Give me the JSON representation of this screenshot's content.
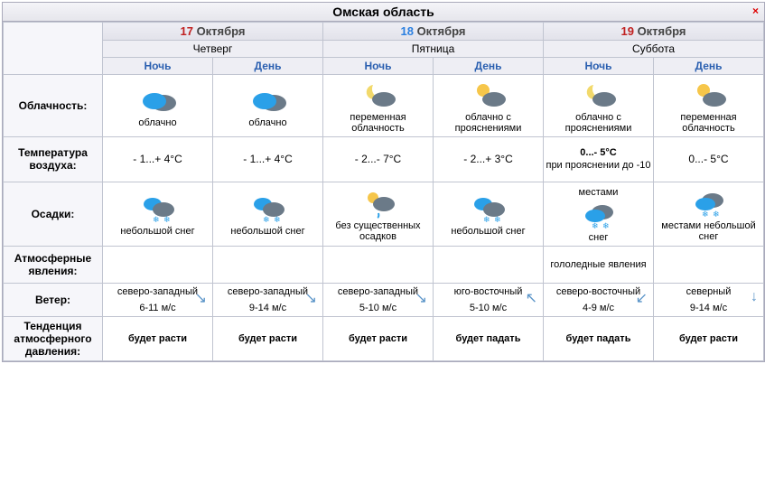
{
  "title": "Омская область",
  "closeGlyph": "×",
  "rowLabels": {
    "cloud": "Облачность:",
    "temp": "Температура воздуха:",
    "precip": "Осадки:",
    "atm": "Атмосферные явления:",
    "wind": "Ветер:",
    "press": "Тенденция атмосферного давления:"
  },
  "todLabels": {
    "night": "Ночь",
    "day": "День"
  },
  "days": [
    {
      "dateNum": "17",
      "dateMonth": "Октября",
      "dow": "Четверг",
      "periods": [
        {
          "cloudIcon": "cloudy-blue",
          "cloudLabel": "облачно",
          "temp": "- 1...+ 4°C",
          "precipIcon": "light-snow",
          "precipLabel": "небольшой снег",
          "atm": "",
          "windDir": "северо-западный",
          "windArrow": "↘",
          "windSpeed": "6-11 м/с",
          "press": "будет расти"
        },
        {
          "cloudIcon": "cloudy-blue",
          "cloudLabel": "облачно",
          "temp": "- 1...+ 4°C",
          "precipIcon": "light-snow",
          "precipLabel": "небольшой снег",
          "atm": "",
          "windDir": "северо-западный",
          "windArrow": "↘",
          "windSpeed": "9-14 м/с",
          "press": "будет расти"
        }
      ]
    },
    {
      "dateNum": "18",
      "dateMonth": "Октября",
      "dow": "Пятница",
      "periods": [
        {
          "cloudIcon": "night-partly",
          "cloudLabel": "переменная облачность",
          "temp": "- 2...- 7°C",
          "precipIcon": "no-precip",
          "precipLabel": "без существенных осадков",
          "atm": "",
          "windDir": "северо-западный",
          "windArrow": "↘",
          "windSpeed": "5-10 м/с",
          "press": "будет расти"
        },
        {
          "cloudIcon": "day-partly",
          "cloudLabel": "облачно с прояснениями",
          "temp": "- 2...+ 3°C",
          "precipIcon": "light-snow",
          "precipLabel": "небольшой снег",
          "atm": "",
          "windDir": "юго-восточный",
          "windArrow": "↖",
          "windSpeed": "5-10 м/с",
          "press": "будет падать"
        }
      ]
    },
    {
      "dateNum": "19",
      "dateMonth": "Октября",
      "dow": "Суббота",
      "periods": [
        {
          "cloudIcon": "night-partly",
          "cloudLabel": "облачно с прояснениями",
          "temp": "0...- 5°C\nпри прояснении до -10",
          "precipIcon": "snow",
          "precipTop": "местами",
          "precipLabel": "снег",
          "atm": "гололедные явления",
          "windDir": "северо-восточный",
          "windArrow": "↙",
          "windSpeed": "4-9 м/с",
          "press": "будет падать"
        },
        {
          "cloudIcon": "day-partly",
          "cloudLabel": "переменная облачность",
          "temp": "0...- 5°C",
          "precipIcon": "snow",
          "precipLabel": "местами небольшой снег",
          "atm": "",
          "windDir": "северный",
          "windArrow": "↓",
          "windSpeed": "9-14 м/с",
          "press": "будет расти"
        }
      ]
    }
  ],
  "icons": {
    "cloudy-blue": "<svg viewBox='0 0 48 34'><ellipse cx='30' cy='20' rx='14' ry='9' fill='#6b7a88'/><ellipse cx='20' cy='18' rx='13' ry='9' fill='#2aa0e8'/></svg>",
    "night-partly": "<svg viewBox='0 0 48 34'><path d='M18 6a8 8 0 1 0 6 14 10 10 0 0 1-6-14z' fill='#f2d96b'/><ellipse cx='30' cy='22' rx='13' ry='8' fill='#6b7a88'/></svg>",
    "day-partly": "<svg viewBox='0 0 48 34'><circle cx='18' cy='12' r='7' fill='#f6c64a'/><ellipse cx='30' cy='22' rx='13' ry='8' fill='#6b7a88'/></svg>",
    "light-snow": "<svg viewBox='0 0 48 34'><ellipse cx='18' cy='12' rx='10' ry='7' fill='#2aa0e8'/><ellipse cx='30' cy='18' rx='12' ry='8' fill='#6b7a88'/><text x='18' y='32' font-size='9' fill='#2aa0e8'>❄</text><text x='30' y='32' font-size='9' fill='#2aa0e8'>❄</text></svg>",
    "no-precip": "<svg viewBox='0 0 48 34'><circle cx='18' cy='11' r='6' fill='#f6c64a'/><ellipse cx='30' cy='18' rx='12' ry='8' fill='#6b7a88'/><path d='M24 28 q1 4 -1 5' stroke='#2aa0e8' stroke-width='2' fill='none'/></svg>",
    "snow": "<svg viewBox='0 0 48 34'><ellipse cx='28' cy='14' rx='12' ry='8' fill='#6b7a88'/><ellipse cx='20' cy='18' rx='11' ry='7' fill='#2aa0e8'/><text x='16' y='32' font-size='9' fill='#2aa0e8'>❄</text><text x='28' y='32' font-size='9' fill='#2aa0e8'>❄</text></svg>"
  }
}
